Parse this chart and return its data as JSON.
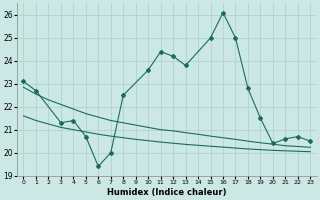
{
  "xlabel": "Humidex (Indice chaleur)",
  "background_color": "#cce8e4",
  "grid_color": "#aacfca",
  "line_color": "#1a6b5e",
  "x_values": [
    0,
    1,
    2,
    3,
    4,
    5,
    6,
    7,
    8,
    9,
    10,
    11,
    12,
    13,
    14,
    15,
    16,
    17,
    18,
    19,
    20,
    21,
    22,
    23
  ],
  "series1": [
    23.1,
    22.7,
    null,
    21.3,
    21.4,
    20.7,
    19.4,
    20.0,
    22.5,
    null,
    23.6,
    24.4,
    24.2,
    23.8,
    null,
    25.0,
    26.1,
    25.0,
    22.8,
    21.5,
    20.4,
    20.6,
    20.7,
    20.5
  ],
  "series2": [
    22.85,
    22.55,
    22.3,
    22.1,
    21.9,
    21.7,
    21.55,
    21.4,
    21.3,
    21.2,
    21.1,
    21.0,
    20.95,
    20.87,
    20.8,
    20.72,
    20.65,
    20.58,
    20.5,
    20.43,
    20.37,
    20.3,
    20.27,
    20.23
  ],
  "series3": [
    21.6,
    21.4,
    21.25,
    21.1,
    21.0,
    20.9,
    20.8,
    20.72,
    20.65,
    20.58,
    20.52,
    20.46,
    20.41,
    20.36,
    20.32,
    20.28,
    20.24,
    20.2,
    20.16,
    20.13,
    20.1,
    20.08,
    20.06,
    20.04
  ],
  "ylim": [
    19,
    26.5
  ],
  "xlim": [
    -0.5,
    23.5
  ],
  "yticks": [
    19,
    20,
    21,
    22,
    23,
    24,
    25,
    26
  ],
  "xticks": [
    0,
    1,
    2,
    3,
    4,
    5,
    6,
    7,
    8,
    9,
    10,
    11,
    12,
    13,
    14,
    15,
    16,
    17,
    18,
    19,
    20,
    21,
    22,
    23
  ]
}
